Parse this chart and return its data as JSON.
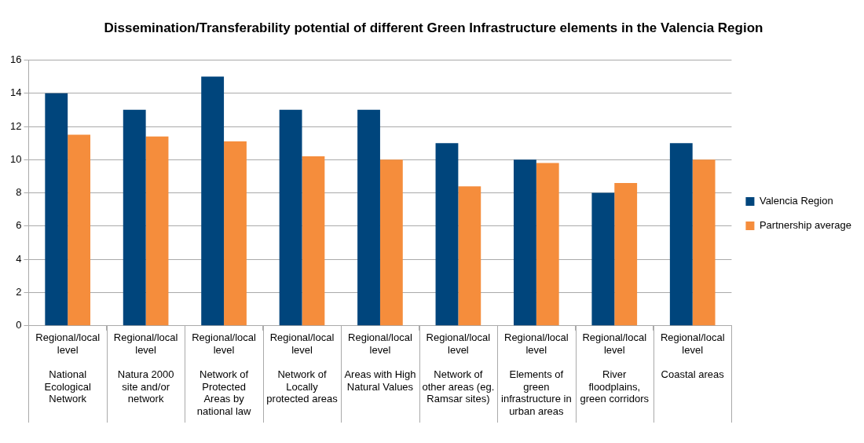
{
  "chart_data": {
    "type": "bar",
    "title": "Dissemination/Transferability potential of different Green Infrastructure elements in the Valencia Region",
    "categories": [
      "Regional/local level\nNational Ecological Network",
      "Regional/local level\nNatura 2000 site and/or network",
      "Regional/local level\nNetwork of Protected Areas by national law",
      "Regional/local level\nNetwork of Locally protected areas",
      "Regional/local level\nAreas with High Natural Values",
      "Regional/local level\nNetwork of other areas (eg. Ramsar sites)",
      "Regional/local level\nElements of green infrastructure in urban areas",
      "Regional/local level\nRiver floodplains, green corridors",
      "Regional/local level\nCoastal areas"
    ],
    "series": [
      {
        "name": "Valencia Region",
        "color": "#00457c",
        "values": [
          14,
          13,
          15,
          13,
          13,
          11,
          10,
          8,
          11
        ]
      },
      {
        "name": "Partnership average",
        "color": "#f58d3c",
        "values": [
          11.5,
          11.4,
          11.1,
          10.2,
          10.0,
          8.4,
          9.8,
          8.6,
          10.0
        ]
      }
    ],
    "ylim": [
      0,
      16
    ],
    "yticks": [
      0,
      2,
      4,
      6,
      8,
      10,
      12,
      14,
      16
    ],
    "grid": "y",
    "legend": "right"
  }
}
